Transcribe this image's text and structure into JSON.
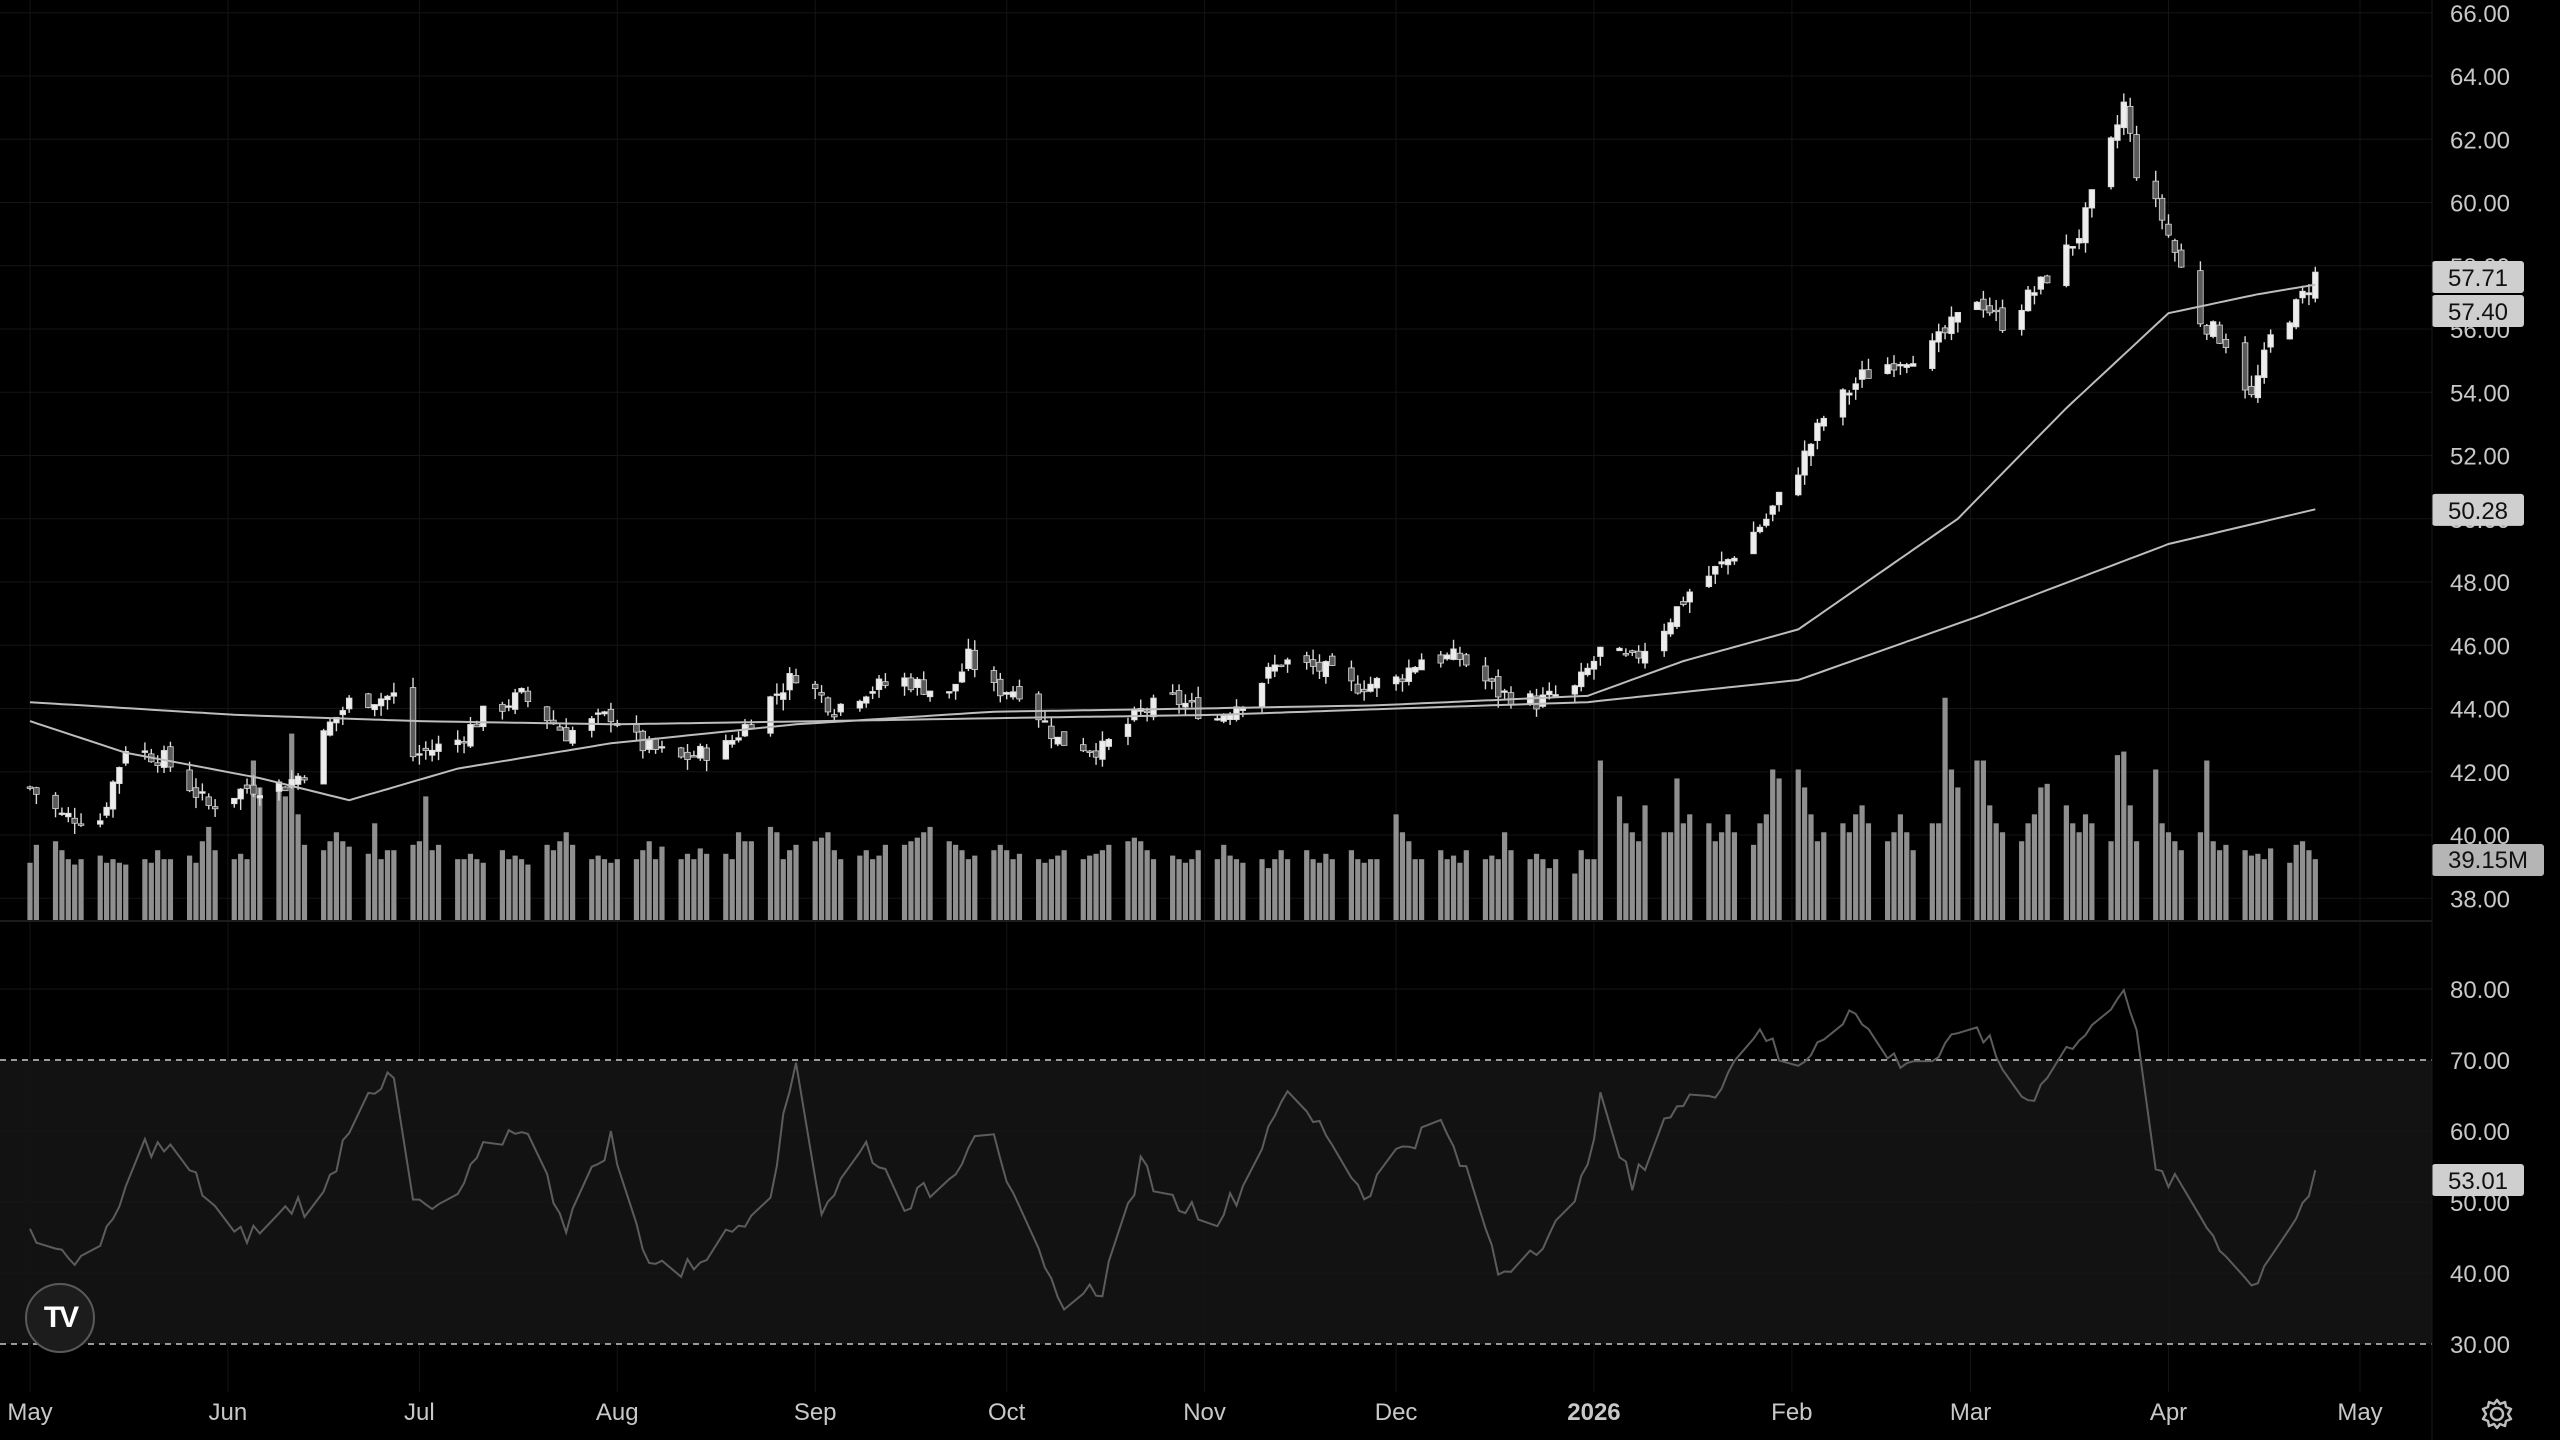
{
  "chart_data": [
    {
      "type": "candlestick",
      "title": "",
      "xlabel": "",
      "ylabel": "",
      "ylim": [
        37.5,
        66.0
      ],
      "y_ticks": [
        "38.00",
        "40.00",
        "42.00",
        "44.00",
        "46.00",
        "48.00",
        "50.00",
        "52.00",
        "54.00",
        "56.00",
        "58.00",
        "60.00",
        "62.00",
        "64.00",
        "66.00"
      ],
      "x_tick_labels": [
        "May",
        "Jun",
        "Jul",
        "Aug",
        "Sep",
        "Oct",
        "Nov",
        "Dec",
        "2026",
        "Feb",
        "Mar",
        "Apr",
        "May"
      ],
      "close_path": [
        [
          "2025-05-01",
          41.5
        ],
        [
          "2025-05-06",
          40.6
        ],
        [
          "2025-05-12",
          40.5
        ],
        [
          "2025-05-16",
          42.8
        ],
        [
          "2025-05-22",
          42.4
        ],
        [
          "2025-05-29",
          40.9
        ],
        [
          "2025-06-04",
          41.5
        ],
        [
          "2025-06-10",
          41.6
        ],
        [
          "2025-06-13",
          42.0
        ],
        [
          "2025-06-17",
          43.5
        ],
        [
          "2025-06-20",
          44.2
        ],
        [
          "2025-06-27",
          44.4
        ],
        [
          "2025-06-30",
          42.5
        ],
        [
          "2025-07-07",
          43.0
        ],
        [
          "2025-07-11",
          43.8
        ],
        [
          "2025-07-17",
          44.4
        ],
        [
          "2025-07-24",
          43.2
        ],
        [
          "2025-07-31",
          43.8
        ],
        [
          "2025-08-05",
          42.8
        ],
        [
          "2025-08-11",
          42.4
        ],
        [
          "2025-08-18",
          42.8
        ],
        [
          "2025-08-25",
          44.3
        ],
        [
          "2025-08-29",
          45.1
        ],
        [
          "2025-09-04",
          44.0
        ],
        [
          "2025-09-09",
          44.6
        ],
        [
          "2025-09-15",
          44.9
        ],
        [
          "2025-09-22",
          44.4
        ],
        [
          "2025-09-25",
          45.6
        ],
        [
          "2025-09-29",
          44.6
        ],
        [
          "2025-10-03",
          44.6
        ],
        [
          "2025-10-09",
          43.0
        ],
        [
          "2025-10-16",
          42.7
        ],
        [
          "2025-10-22",
          43.9
        ],
        [
          "2025-10-27",
          44.3
        ],
        [
          "2025-11-03",
          43.7
        ],
        [
          "2025-11-07",
          44.3
        ],
        [
          "2025-11-13",
          45.5
        ],
        [
          "2025-11-20",
          45.2
        ],
        [
          "2025-11-24",
          44.7
        ],
        [
          "2025-12-01",
          44.9
        ],
        [
          "2025-12-05",
          45.6
        ],
        [
          "2025-12-11",
          45.6
        ],
        [
          "2025-12-17",
          44.5
        ],
        [
          "2025-12-23",
          44.2
        ],
        [
          "2025-12-29",
          44.6
        ],
        [
          "2026-01-02",
          45.8
        ],
        [
          "2026-01-07",
          45.5
        ],
        [
          "2026-01-12",
          46.6
        ],
        [
          "2026-01-16",
          47.7
        ],
        [
          "2026-01-22",
          48.7
        ],
        [
          "2026-01-28",
          50.0
        ],
        [
          "2026-02-02",
          51.6
        ],
        [
          "2026-02-06",
          53.2
        ],
        [
          "2026-02-12",
          54.5
        ],
        [
          "2026-02-17",
          55.0
        ],
        [
          "2026-02-23",
          55.4
        ],
        [
          "2026-03-02",
          57.0
        ],
        [
          "2026-03-06",
          56.2
        ],
        [
          "2026-03-12",
          57.4
        ],
        [
          "2026-03-18",
          59.0
        ],
        [
          "2026-03-23",
          61.8
        ],
        [
          "2026-03-25",
          63.1
        ],
        [
          "2026-03-27",
          61.0
        ],
        [
          "2026-03-31",
          59.5
        ],
        [
          "2026-04-06",
          56.3
        ],
        [
          "2026-04-10",
          55.6
        ],
        [
          "2026-04-14",
          53.8
        ],
        [
          "2026-04-17",
          55.7
        ],
        [
          "2026-04-21",
          56.7
        ],
        [
          "2026-04-24",
          57.7
        ]
      ],
      "ma_short_path": [
        [
          "2025-05-01",
          43.6
        ],
        [
          "2025-05-16",
          42.6
        ],
        [
          "2025-06-06",
          41.8
        ],
        [
          "2025-06-20",
          41.1
        ],
        [
          "2025-07-07",
          42.1
        ],
        [
          "2025-07-31",
          42.9
        ],
        [
          "2025-08-29",
          43.5
        ],
        [
          "2025-09-29",
          43.9
        ],
        [
          "2025-10-31",
          44.0
        ],
        [
          "2025-11-28",
          44.1
        ],
        [
          "2025-12-31",
          44.4
        ],
        [
          "2026-01-15",
          45.5
        ],
        [
          "2026-02-02",
          46.5
        ],
        [
          "2026-02-27",
          50.0
        ],
        [
          "2026-03-16",
          53.5
        ],
        [
          "2026-04-01",
          56.5
        ],
        [
          "2026-04-15",
          57.1
        ],
        [
          "2026-04-24",
          57.4
        ]
      ],
      "ma_long_path": [
        [
          "2025-05-01",
          44.2
        ],
        [
          "2025-06-02",
          43.8
        ],
        [
          "2025-07-01",
          43.6
        ],
        [
          "2025-08-01",
          43.5
        ],
        [
          "2025-09-02",
          43.6
        ],
        [
          "2025-10-01",
          43.7
        ],
        [
          "2025-11-03",
          43.8
        ],
        [
          "2025-12-01",
          44.0
        ],
        [
          "2025-12-31",
          44.2
        ],
        [
          "2026-02-02",
          44.9
        ],
        [
          "2026-03-02",
          46.9
        ],
        [
          "2026-04-01",
          49.2
        ],
        [
          "2026-04-24",
          50.3
        ]
      ],
      "price_labels": [
        {
          "value": "57.71",
          "y": 57.71
        },
        {
          "value": "57.40",
          "y": 57.4
        },
        {
          "value": "50.28",
          "y": 50.28
        }
      ]
    },
    {
      "type": "bar",
      "title": "",
      "series_name": "Volume",
      "current_label": "39.15M",
      "values_relative": [
        0.28,
        0.38,
        0.4,
        0.35,
        0.3,
        0.27,
        0.3,
        0.32,
        0.28,
        0.3,
        0.28,
        0.27,
        0.3,
        0.28,
        0.35,
        0.3,
        0.3,
        0.32,
        0.28,
        0.4,
        0.48,
        0.35,
        0.3,
        0.33,
        0.3,
        0.85,
        0.7,
        0.72,
        0.65,
        1.0,
        0.55,
        0.38,
        0.35,
        0.4,
        0.45,
        0.4,
        0.37,
        0.33,
        0.5,
        0.3,
        0.35,
        0.35,
        0.38,
        0.4,
        0.65,
        0.35,
        0.38,
        0.3,
        0.3,
        0.33,
        0.3,
        0.28,
        0.35,
        0.3,
        0.32,
        0.3,
        0.27,
        0.38,
        0.35,
        0.4,
        0.45,
        0.38,
        0.3,
        0.32,
        0.3,
        0.28,
        0.3,
        0.3,
        0.35,
        0.4,
        0.3,
        0.37,
        0.3,
        0.33,
        0.3,
        0.36,
        0.33,
        0.33,
        0.3,
        0.45,
        0.4,
        0.4,
        0.48,
        0.45,
        0.3,
        0.35,
        0.38,
        0.4,
        0.42,
        0.45,
        0.35,
        0.3,
        0.32,
        0.35,
        0.3,
        0.32,
        0.38,
        0.38,
        0.4,
        0.42,
        0.45,
        0.48,
        0.4,
        0.38,
        0.35,
        0.3,
        0.32,
        0.35,
        0.38,
        0.35,
        0.3,
        0.33,
        0.3,
        0.28,
        0.3,
        0.32,
        0.35,
        0.3,
        0.32,
        0.33,
        0.35,
        0.38,
        0.4,
        0.42,
        0.4,
        0.35,
        0.3,
        0.32,
        0.3,
        0.28,
        0.3,
        0.35,
        0.3,
        0.38,
        0.32,
        0.3,
        0.28,
        0.3,
        0.25,
        0.3,
        0.35,
        0.3,
        0.35,
        0.3,
        0.28,
        0.33,
        0.3,
        0.35,
        0.3,
        0.28,
        0.3,
        0.3,
        0.55,
        0.45,
        0.4,
        0.3,
        0.3,
        0.35,
        0.3,
        0.32,
        0.28,
        0.35,
        0.3,
        0.32,
        0.3,
        0.45,
        0.35,
        0.3,
        0.33,
        0.3,
        0.25,
        0.3,
        0.22,
        0.35,
        0.3,
        0.3,
        0.85,
        0.65,
        0.5,
        0.45,
        0.4,
        0.6,
        0.45,
        0.45,
        0.75,
        0.5,
        0.55,
        0.5,
        0.4,
        0.45,
        0.55,
        0.45,
        0.38,
        0.5,
        0.55,
        0.8,
        0.75,
        0.8,
        0.7,
        0.55,
        0.4,
        0.45,
        0.5,
        0.45,
        0.55,
        0.6,
        0.5,
        0.4,
        0.45,
        0.55,
        0.45,
        0.35,
        0.5,
        0.5,
        1.2,
        0.8,
        0.7,
        0.85,
        0.85,
        0.6,
        0.5,
        0.45,
        0.4,
        0.5,
        0.55,
        0.7,
        0.72,
        0.6,
        0.5,
        0.45,
        0.55,
        0.5,
        0.4,
        0.88,
        0.9,
        0.6,
        0.4,
        0.8,
        0.5,
        0.45,
        0.4,
        0.35,
        0.45,
        0.85,
        0.4,
        0.35,
        0.38,
        0.35,
        0.32,
        0.33,
        0.3,
        0.36
      ]
    },
    {
      "type": "line",
      "title": "",
      "series_name": "RSI",
      "ylim": [
        26,
        86
      ],
      "y_ticks": [
        "30.00",
        "40.00",
        "50.00",
        "60.00",
        "70.00",
        "80.00"
      ],
      "band": [
        30,
        70
      ],
      "current_label": "53.01",
      "path": [
        [
          "2025-05-01",
          46
        ],
        [
          "2025-05-06",
          42
        ],
        [
          "2025-05-12",
          43
        ],
        [
          "2025-05-19",
          58
        ],
        [
          "2025-05-24",
          57
        ],
        [
          "2025-06-02",
          45
        ],
        [
          "2025-06-06",
          46
        ],
        [
          "2025-06-12",
          50
        ],
        [
          "2025-06-15",
          48
        ],
        [
          "2025-06-22",
          66
        ],
        [
          "2025-06-27",
          67
        ],
        [
          "2025-06-30",
          50
        ],
        [
          "2025-07-05",
          48
        ],
        [
          "2025-07-11",
          57
        ],
        [
          "2025-07-17",
          61
        ],
        [
          "2025-07-24",
          47
        ],
        [
          "2025-07-31",
          59
        ],
        [
          "2025-08-05",
          43
        ],
        [
          "2025-08-11",
          40
        ],
        [
          "2025-08-18",
          45
        ],
        [
          "2025-08-25",
          52
        ],
        [
          "2025-08-29",
          70
        ],
        [
          "2025-09-02",
          49
        ],
        [
          "2025-09-09",
          58
        ],
        [
          "2025-09-15",
          50
        ],
        [
          "2025-09-22",
          53
        ],
        [
          "2025-09-28",
          64
        ],
        [
          "2025-10-02",
          50
        ],
        [
          "2025-10-09",
          36
        ],
        [
          "2025-10-16",
          38
        ],
        [
          "2025-10-22",
          55
        ],
        [
          "2025-10-27",
          50
        ],
        [
          "2025-11-03",
          48
        ],
        [
          "2025-11-07",
          52
        ],
        [
          "2025-11-13",
          65
        ],
        [
          "2025-11-20",
          60
        ],
        [
          "2025-11-26",
          51
        ],
        [
          "2025-12-02",
          58
        ],
        [
          "2025-12-08",
          61
        ],
        [
          "2025-12-14",
          50
        ],
        [
          "2025-12-17",
          40
        ],
        [
          "2025-12-23",
          44
        ],
        [
          "2025-12-29",
          49
        ],
        [
          "2026-01-02",
          64
        ],
        [
          "2026-01-07",
          52
        ],
        [
          "2026-01-12",
          62
        ],
        [
          "2026-01-20",
          66
        ],
        [
          "2026-01-27",
          75
        ],
        [
          "2026-02-01",
          67
        ],
        [
          "2026-02-05",
          73
        ],
        [
          "2026-02-10",
          77
        ],
        [
          "2026-02-17",
          70
        ],
        [
          "2026-02-23",
          70
        ],
        [
          "2026-03-02",
          75
        ],
        [
          "2026-03-06",
          69
        ],
        [
          "2026-03-10",
          64
        ],
        [
          "2026-03-14",
          70
        ],
        [
          "2026-03-20",
          74
        ],
        [
          "2026-03-25",
          81
        ],
        [
          "2026-03-27",
          73
        ],
        [
          "2026-03-30",
          54
        ],
        [
          "2026-04-03",
          52
        ],
        [
          "2026-04-06",
          48
        ],
        [
          "2026-04-10",
          43
        ],
        [
          "2026-04-14",
          38
        ],
        [
          "2026-04-17",
          43
        ],
        [
          "2026-04-21",
          48
        ],
        [
          "2026-04-24",
          53
        ]
      ]
    }
  ],
  "logo": {
    "text": "TV",
    "icon": "tradingview-logo-icon"
  },
  "settings": {
    "icon": "gear-icon"
  }
}
